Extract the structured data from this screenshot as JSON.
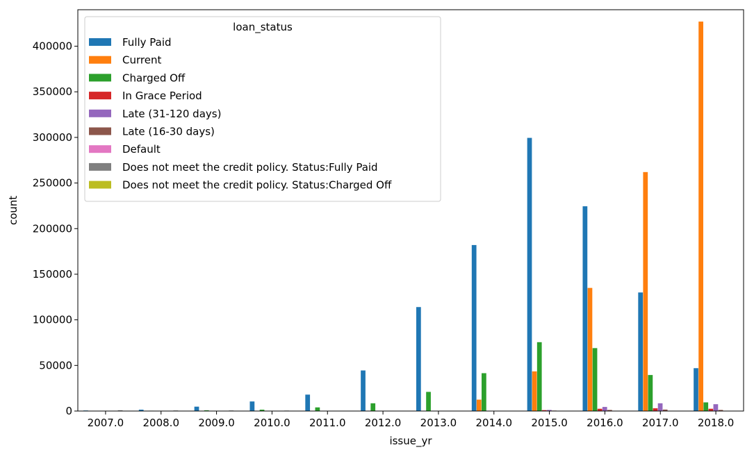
{
  "chart_data": {
    "type": "bar",
    "xlabel": "issue_yr",
    "ylabel": "count",
    "ylim": [
      0,
      440000
    ],
    "yticks": [
      0,
      50000,
      100000,
      150000,
      200000,
      250000,
      300000,
      350000,
      400000
    ],
    "grid": false,
    "legend_title": "loan_status",
    "legend_position": "top-left",
    "categories": [
      "2007.0",
      "2008.0",
      "2009.0",
      "2010.0",
      "2011.0",
      "2012.0",
      "2013.0",
      "2014.0",
      "2015.0",
      "2016.0",
      "2017.0",
      "2018.0"
    ],
    "series": [
      {
        "name": "Fully Paid",
        "color": "#1f77b4",
        "values": [
          600,
          1500,
          4800,
          10500,
          18000,
          44500,
          114000,
          182000,
          299500,
          224500,
          130000,
          47000
        ]
      },
      {
        "name": "Current",
        "color": "#ff7f0e",
        "values": [
          0,
          0,
          0,
          0,
          0,
          0,
          0,
          12500,
          43500,
          135000,
          262000,
          427000
        ]
      },
      {
        "name": "Charged Off",
        "color": "#2ca02c",
        "values": [
          150,
          400,
          800,
          1500,
          4000,
          8500,
          21000,
          41500,
          75500,
          69000,
          39500,
          9500
        ]
      },
      {
        "name": "In Grace Period",
        "color": "#d62728",
        "values": [
          0,
          0,
          0,
          0,
          0,
          0,
          0,
          200,
          1000,
          2500,
          3000,
          2500
        ]
      },
      {
        "name": "Late (31-120 days)",
        "color": "#9467bd",
        "values": [
          0,
          0,
          0,
          0,
          0,
          0,
          0,
          300,
          1200,
          4500,
          8500,
          7500
        ]
      },
      {
        "name": "Late (16-30 days)",
        "color": "#8c564b",
        "values": [
          0,
          0,
          0,
          0,
          0,
          0,
          0,
          100,
          500,
          1200,
          1600,
          1200
        ]
      },
      {
        "name": "Default",
        "color": "#e377c2",
        "values": [
          0,
          0,
          0,
          0,
          0,
          0,
          0,
          0,
          0,
          0,
          0,
          0
        ]
      },
      {
        "name": "Does not meet the credit policy. Status:Fully Paid",
        "color": "#7f7f7f",
        "values": [
          800,
          600,
          600,
          500,
          0,
          0,
          0,
          0,
          0,
          0,
          0,
          0
        ]
      },
      {
        "name": "Does not meet the credit policy. Status:Charged Off",
        "color": "#bcbd22",
        "values": [
          300,
          300,
          200,
          200,
          0,
          0,
          0,
          0,
          0,
          0,
          0,
          0
        ]
      }
    ]
  }
}
